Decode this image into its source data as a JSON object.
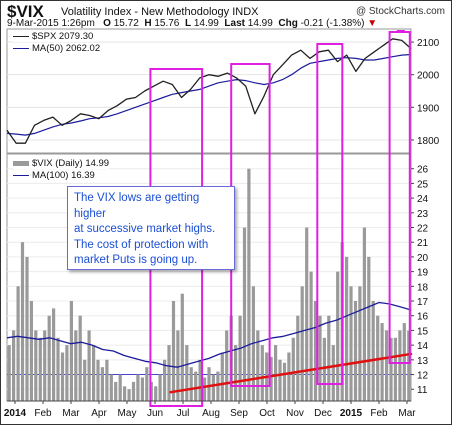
{
  "header": {
    "symbol": "$VIX",
    "description": "Volatility Index - New Methodology  INDX",
    "credit": "@ StockCharts.com",
    "date": "9-Mar-2015 1:26pm",
    "open_label": "O",
    "open": "15.72",
    "high_label": "H",
    "high": "15.76",
    "low_label": "L",
    "low": "14.99",
    "last_label": "Last",
    "last": "14.99",
    "chg_label": "Chg",
    "chg": "-0.21 (-1.38%)",
    "chg_arrow": "▼",
    "neg_color": "#cc0000"
  },
  "annotation": {
    "lines": [
      "The VIX lows are getting higher",
      "at successive market highs.",
      "The cost of protection with",
      "market Puts is going up."
    ],
    "text_color": "#1a4fd6"
  },
  "legend": {
    "spx": "$SPX 2079.30",
    "ma50": "MA(50) 2062.02",
    "vix": "$VIX (Daily) 14.99",
    "ma100": "MA(100) 16.39"
  },
  "colors": {
    "price_line": "#222222",
    "ma_line": "#1c1c9c",
    "bars": "#9a9a9a",
    "highlight": "#e020e0",
    "trend": "#e01010",
    "hline": "#4444cc"
  },
  "x_labels": [
    "2014",
    "Feb",
    "Mar",
    "Apr",
    "May",
    "Jun",
    "Jul",
    "Aug",
    "Sep",
    "Oct",
    "Nov",
    "Dec",
    "2015",
    "Feb",
    "Mar"
  ],
  "chart_data": [
    {
      "type": "line",
      "series": [
        {
          "name": "$SPX",
          "values": [
            1830,
            1790,
            1790,
            1845,
            1860,
            1870,
            1845,
            1860,
            1880,
            1875,
            1865,
            1890,
            1905,
            1925,
            1930,
            1950,
            1965,
            1980,
            1970,
            1930,
            1955,
            1990,
            2000,
            1995,
            2005,
            1990,
            1965,
            1880,
            1935,
            2000,
            2030,
            2060,
            2075,
            2050,
            2070,
            2075,
            2040,
            2060,
            2010,
            2050,
            2070,
            2090,
            2110,
            2105,
            2080
          ]
        },
        {
          "name": "MA(50)",
          "values": [
            1820,
            1818,
            1815,
            1820,
            1830,
            1840,
            1848,
            1852,
            1858,
            1865,
            1868,
            1872,
            1880,
            1890,
            1900,
            1910,
            1920,
            1930,
            1940,
            1945,
            1950,
            1955,
            1965,
            1975,
            1980,
            1985,
            1982,
            1975,
            1970,
            1975,
            1985,
            2000,
            2020,
            2035,
            2040,
            2045,
            2050,
            2052,
            2050,
            2045,
            2045,
            2050,
            2055,
            2060,
            2062
          ]
        }
      ],
      "y_ticks": [
        1800,
        1900,
        2000,
        2100
      ],
      "ylim": [
        1760,
        2140
      ]
    },
    {
      "type": "bar",
      "series": [
        {
          "name": "$VIX (Daily)",
          "values": [
            14,
            15,
            18,
            21,
            20,
            17,
            15,
            14.5,
            15,
            16,
            16.5,
            14.5,
            13.5,
            14,
            17,
            15,
            16,
            13,
            15,
            14,
            13,
            12.5,
            13,
            12,
            11.5,
            12,
            11.2,
            11,
            11.5,
            12,
            11.8,
            12.5,
            11.5,
            11.2,
            12,
            13,
            14,
            17,
            15,
            17.5,
            14,
            12.5,
            12.2,
            13,
            11.8,
            12.5,
            12,
            12.2,
            13.5,
            15,
            16,
            14,
            16,
            22,
            26,
            18,
            15,
            14,
            13.5,
            13.2,
            14,
            13,
            12.8,
            13.5,
            14.5,
            16,
            18,
            22,
            19,
            17,
            16,
            14.5,
            16,
            14,
            19,
            21,
            20,
            18,
            17,
            18,
            22,
            20,
            17,
            16,
            15.5,
            15,
            14.5,
            14.5,
            15,
            15.5,
            14.99
          ]
        },
        {
          "name": "MA(100)",
          "values": [
            14.5,
            14.6,
            14.5,
            14.4,
            14.5,
            14.3,
            14.1,
            14.2,
            14.0,
            13.7,
            13.6,
            13.3,
            13.1,
            12.9,
            12.8,
            12.6,
            12.5,
            12.7,
            12.9,
            13.1,
            13.4,
            13.6,
            13.8,
            14.1,
            14.3,
            14.5,
            14.6,
            14.8,
            15.0,
            15.2,
            15.5,
            15.7,
            16.0,
            16.3,
            16.6,
            16.9,
            16.8,
            16.6,
            16.39
          ]
        }
      ],
      "y_ticks": [
        11,
        12,
        13,
        14,
        15,
        16,
        17,
        18,
        19,
        20,
        21,
        22,
        23,
        24,
        25,
        26
      ],
      "ylim": [
        10.2,
        27
      ]
    }
  ]
}
